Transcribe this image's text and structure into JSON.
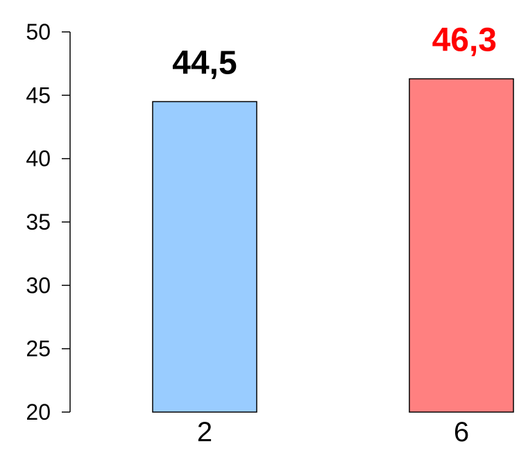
{
  "chart_data": {
    "type": "bar",
    "title": "",
    "xlabel": "",
    "ylabel": "",
    "categories": [
      "2",
      "6"
    ],
    "values": [
      44.5,
      46.3
    ],
    "value_labels": [
      "44,5",
      "46,3"
    ],
    "bar_colors": [
      "#99ccff",
      "#ff8080"
    ],
    "label_colors": [
      "#000000",
      "#ff0000"
    ],
    "ylim": [
      20,
      50
    ],
    "yticks": [
      20,
      25,
      30,
      35,
      40,
      45,
      50
    ],
    "ytick_labels": [
      "20",
      "25",
      "30",
      "35",
      "40",
      "45",
      "50"
    ],
    "grid": false,
    "legend": "none"
  }
}
